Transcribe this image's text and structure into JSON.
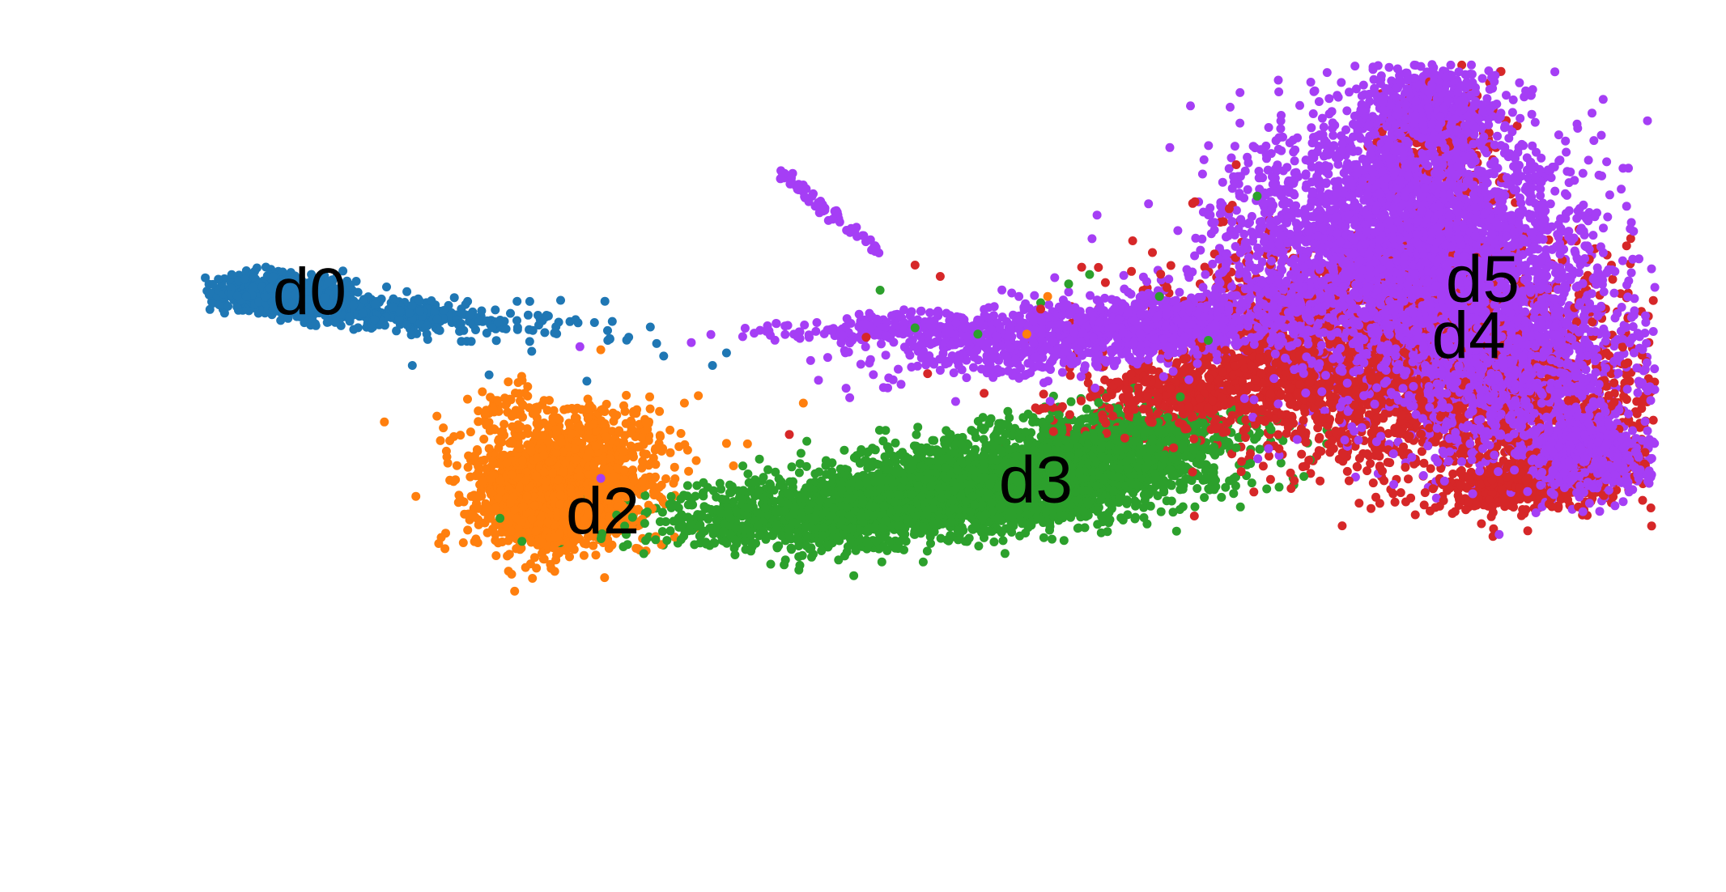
{
  "chart_data": {
    "type": "scatter",
    "title": "",
    "xlabel": "",
    "ylabel": "",
    "axes_visible": false,
    "grid": false,
    "legend": "none",
    "xlim": [
      0,
      100
    ],
    "ylim": [
      0,
      100
    ],
    "series": [
      {
        "name": "d0",
        "color": "#1f77b4",
        "label_position": [
          3,
          65
        ],
        "clusters": [
          {
            "cx": 3.5,
            "cy": 65.5,
            "sx": 2.2,
            "sy": 1.3,
            "n": 900
          },
          {
            "cx": 10.5,
            "cy": 62.5,
            "sx": 4.0,
            "sy": 1.3,
            "n": 350,
            "rot": -10
          },
          {
            "cx": 20,
            "cy": 60,
            "sx": 4.5,
            "sy": 1.8,
            "n": 60
          }
        ],
        "outliers": [
          [
            31,
            55.5
          ],
          [
            27,
            58
          ],
          [
            13,
            54
          ],
          [
            22,
            62
          ],
          [
            28.5,
            58.5
          ],
          [
            18.5,
            52.5
          ],
          [
            35.5,
            56
          ],
          [
            25.5,
            51.5
          ],
          [
            30.5,
            57.5
          ],
          [
            34.5,
            54
          ]
        ]
      },
      {
        "name": "d2",
        "color": "#ff7f0e",
        "label_position": [
          24,
          30
        ],
        "clusters": [
          {
            "cx": 23.5,
            "cy": 33,
            "sx": 3.0,
            "sy": 4.2,
            "n": 1700
          },
          {
            "cx": 25,
            "cy": 42,
            "sx": 3.4,
            "sy": 3.2,
            "n": 350
          },
          {
            "cx": 20,
            "cy": 48,
            "sx": 1.5,
            "sy": 1.8,
            "n": 40
          }
        ],
        "outliers": [
          [
            11,
            45
          ],
          [
            36,
            38
          ],
          [
            30,
            49
          ],
          [
            41,
            48
          ],
          [
            37,
            41.5
          ],
          [
            57,
            59
          ],
          [
            58.5,
            65
          ],
          [
            26.5,
            56.5
          ]
        ]
      },
      {
        "name": "d3",
        "color": "#2ca02c",
        "label_position": [
          55,
          35
        ],
        "clusters": [
          {
            "cx": 55,
            "cy": 35,
            "sx": 7.5,
            "sy": 3.6,
            "n": 2600,
            "rot": 15
          },
          {
            "cx": 42,
            "cy": 30,
            "sx": 6.0,
            "sy": 2.6,
            "n": 900,
            "rot": 8
          },
          {
            "cx": 64,
            "cy": 42,
            "sx": 5.0,
            "sy": 3.0,
            "n": 600,
            "rot": 18
          }
        ],
        "outliers": [
          [
            46.5,
            66
          ],
          [
            49,
            60
          ],
          [
            70,
            58
          ],
          [
            60,
            67
          ],
          [
            58,
            64
          ],
          [
            68,
            49
          ],
          [
            39,
            37
          ],
          [
            73.5,
            81
          ],
          [
            66.5,
            65
          ],
          [
            53.5,
            59
          ],
          [
            61.5,
            68.5
          ]
        ]
      },
      {
        "name": "d4",
        "color": "#d62728",
        "label_position": [
          86,
          58
        ],
        "clusters": [
          {
            "cx": 83,
            "cy": 58,
            "sx": 8.5,
            "sy": 8.0,
            "n": 1800
          },
          {
            "cx": 88,
            "cy": 48,
            "sx": 7.0,
            "sy": 6.0,
            "n": 900
          },
          {
            "cx": 94,
            "cy": 36,
            "sx": 4.0,
            "sy": 2.5,
            "n": 700,
            "rot": 25
          },
          {
            "cx": 72,
            "cy": 51,
            "sx": 6.0,
            "sy": 3.0,
            "n": 700,
            "rot": 20
          },
          {
            "cx": 86,
            "cy": 88,
            "sx": 2.5,
            "sy": 6.0,
            "n": 200
          }
        ],
        "outliers": [
          [
            45.5,
            58.5
          ],
          [
            49,
            70
          ],
          [
            58,
            63
          ],
          [
            66,
            72
          ],
          [
            71.5,
            79
          ],
          [
            72,
            86
          ],
          [
            69,
            30
          ],
          [
            82,
            33
          ],
          [
            64.5,
            69
          ],
          [
            40,
            43
          ]
        ]
      },
      {
        "name": "d5",
        "color": "#a53ef5",
        "label_position": [
          87,
          67
        ],
        "clusters": [
          {
            "cx": 84,
            "cy": 74,
            "sx": 6.0,
            "sy": 10.0,
            "n": 3400
          },
          {
            "cx": 91,
            "cy": 55,
            "sx": 5.0,
            "sy": 8.0,
            "n": 1600
          },
          {
            "cx": 97,
            "cy": 40,
            "sx": 2.2,
            "sy": 3.0,
            "n": 700
          },
          {
            "cx": 65,
            "cy": 60,
            "sx": 8.5,
            "sy": 2.8,
            "n": 1400,
            "rot": 15
          },
          {
            "cx": 49,
            "cy": 60,
            "sx": 5.5,
            "sy": 1.2,
            "n": 250,
            "rot": 5
          },
          {
            "cx": 86,
            "cy": 95,
            "sx": 2.5,
            "sy": 4.0,
            "n": 500
          }
        ],
        "arm": {
          "from": [
            39.5,
            84.5
          ],
          "to": [
            46.5,
            72
          ],
          "n": 70
        },
        "outliers": [
          [
            25,
            57
          ],
          [
            26.5,
            36
          ],
          [
            79,
            89
          ],
          [
            78.5,
            88
          ],
          [
            51,
            55
          ],
          [
            70,
            78
          ],
          [
            48,
            51
          ],
          [
            59,
            68
          ]
        ]
      }
    ]
  }
}
